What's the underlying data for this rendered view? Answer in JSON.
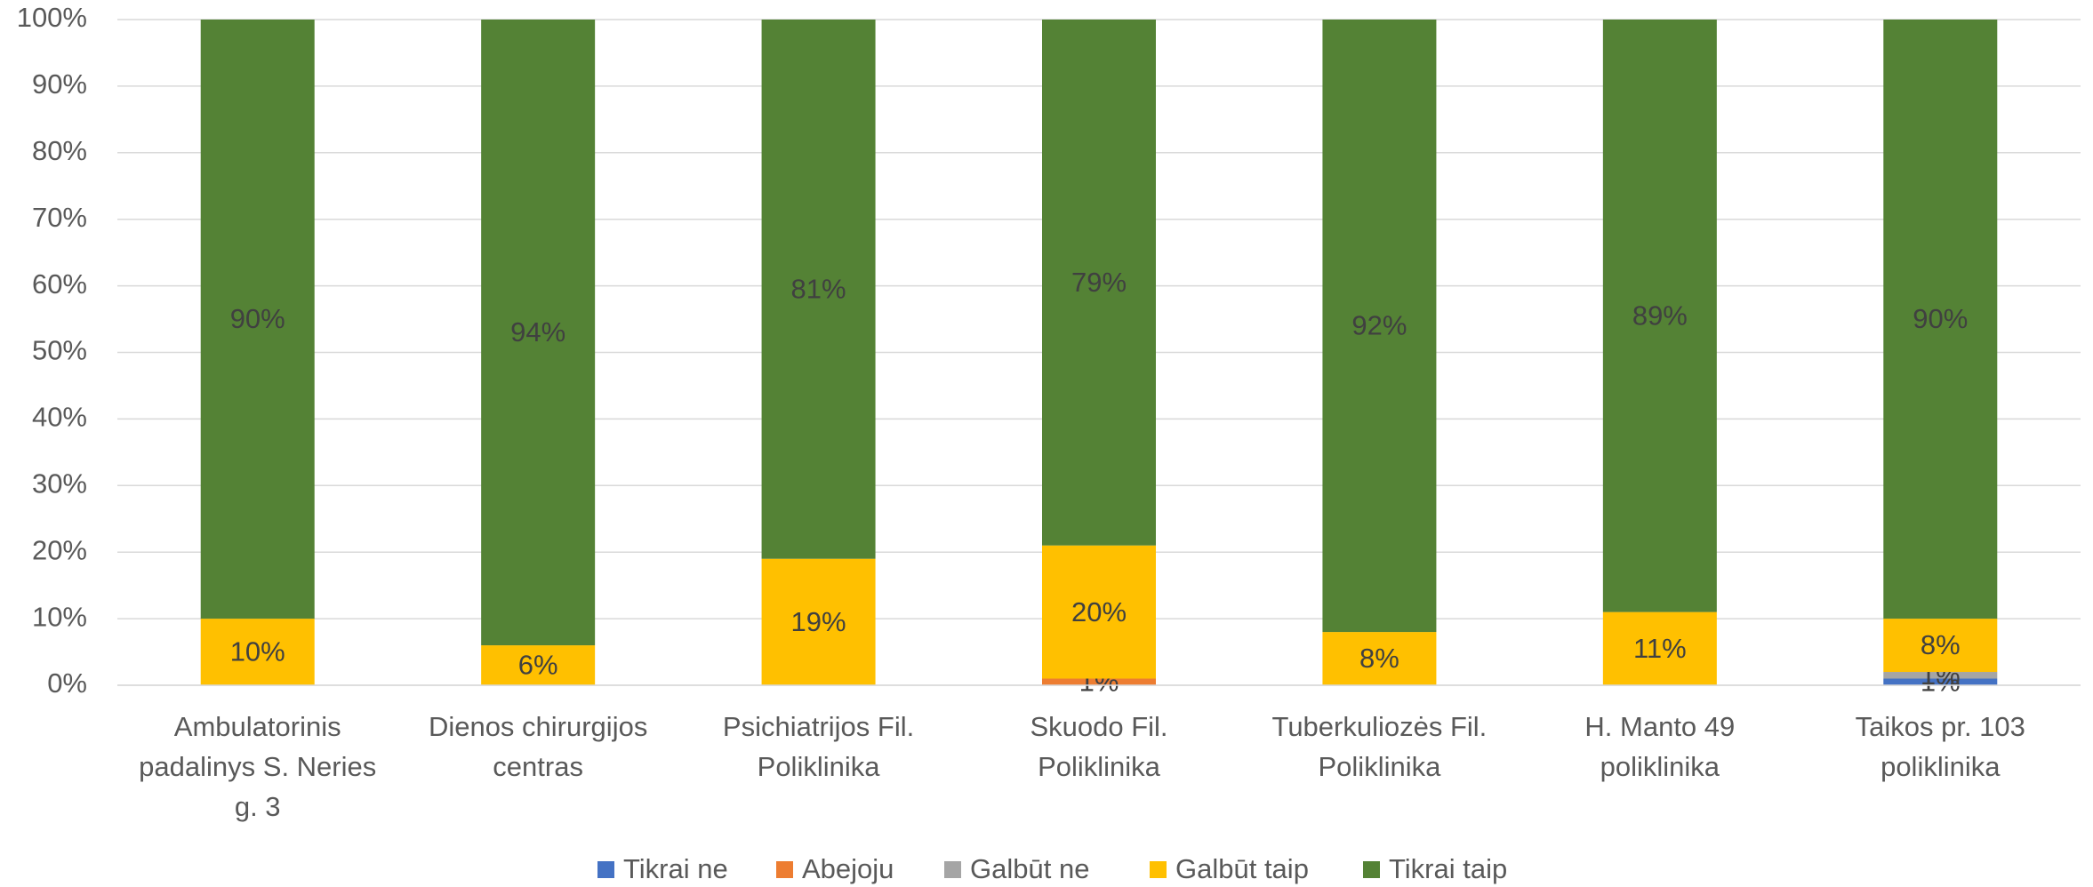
{
  "chart_data": {
    "type": "stacked_bar_percent",
    "categories": [
      "Ambulatorinis padalinys S. Neries g. 3",
      "Dienos chirurgijos centras",
      "Psichiatrijos Fil. Poliklinika",
      "Skuodo Fil. Poliklinika",
      "Tuberkuliozės Fil. Poliklinika",
      "H. Manto 49 poliklinika",
      "Taikos pr. 103 poliklinika"
    ],
    "series": [
      {
        "name": "Tikrai ne",
        "color": "#4472c4",
        "values": [
          0,
          0,
          0,
          0,
          0,
          0,
          1
        ],
        "value_labels": [
          null,
          null,
          null,
          null,
          null,
          null,
          "1%"
        ]
      },
      {
        "name": "Abejoju",
        "color": "#ed7d31",
        "values": [
          0,
          0,
          0,
          1,
          0,
          0,
          0
        ],
        "value_labels": [
          null,
          null,
          null,
          "1%",
          null,
          null,
          null
        ]
      },
      {
        "name": "Galbūt ne",
        "color": "#a5a5a5",
        "values": [
          0,
          0,
          0,
          0,
          0,
          0,
          1
        ],
        "value_labels": [
          null,
          null,
          null,
          null,
          null,
          null,
          "1%"
        ]
      },
      {
        "name": "Galbūt taip",
        "color": "#ffc000",
        "values": [
          10,
          6,
          19,
          20,
          8,
          11,
          8
        ],
        "value_labels": [
          "10%",
          "6%",
          "19%",
          "20%",
          "8%",
          "11%",
          "8%"
        ]
      },
      {
        "name": "Tikrai taip",
        "color": "#548235",
        "values": [
          90,
          94,
          81,
          79,
          92,
          89,
          90
        ],
        "value_labels": [
          "90%",
          "94%",
          "81%",
          "79%",
          "92%",
          "89%",
          "90%"
        ]
      }
    ],
    "ylim": [
      0,
      100
    ],
    "yticks": [
      {
        "value": 0,
        "label": "0%"
      },
      {
        "value": 10,
        "label": "10%"
      },
      {
        "value": 20,
        "label": "20%"
      },
      {
        "value": 30,
        "label": "30%"
      },
      {
        "value": 40,
        "label": "40%"
      },
      {
        "value": 50,
        "label": "50%"
      },
      {
        "value": 60,
        "label": "60%"
      },
      {
        "value": 70,
        "label": "70%"
      },
      {
        "value": 80,
        "label": "80%"
      },
      {
        "value": 90,
        "label": "90%"
      },
      {
        "value": 100,
        "label": "100%"
      }
    ],
    "grid": true,
    "legend": "bottom"
  }
}
